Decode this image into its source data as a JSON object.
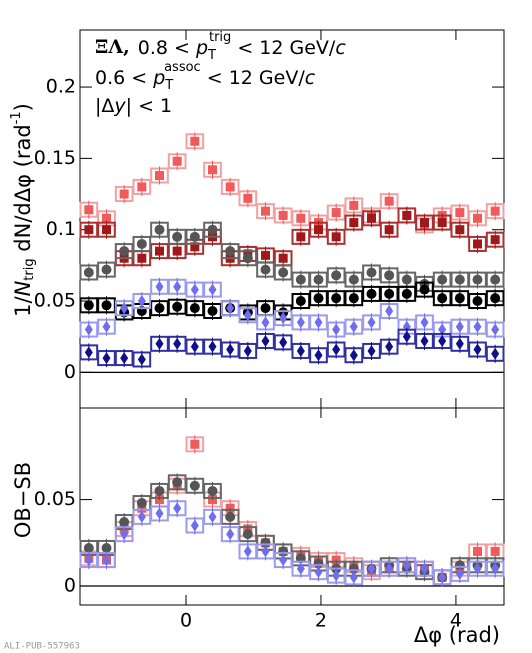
{
  "chart_data": [
    {
      "type": "scatter",
      "y_label_parts": [
        "1/",
        "N",
        "trig",
        " dN/dΔφ (rad",
        "-1",
        ")"
      ],
      "annotation_1": [
        "ΞΛ,",
        "0.8 < ",
        "p",
        "T",
        "trig",
        " < 12 GeV/",
        "c"
      ],
      "annotation_2": [
        "0.6 < ",
        "p",
        "T",
        "assoc",
        " < 12 GeV/",
        "c"
      ],
      "annotation_3": [
        "|Δ",
        "y",
        "| < 1"
      ],
      "xlim": [
        -1.5708,
        4.7124
      ],
      "xticks": [
        0,
        2,
        4
      ],
      "ylim": [
        -0.025,
        0.24
      ],
      "yticks": [
        0,
        0.05,
        0.1,
        0.15,
        0.2
      ],
      "x": [
        -1.4399,
        -1.1781,
        -0.9163,
        -0.6545,
        -0.3927,
        -0.1309,
        0.1309,
        0.3927,
        0.6545,
        0.9163,
        1.1781,
        1.4399,
        1.7017,
        1.9635,
        2.2253,
        2.4871,
        2.7489,
        3.0107,
        3.2725,
        3.5343,
        3.7961,
        4.0579,
        4.3197,
        4.5815
      ],
      "series": [
        {
          "marker": "square",
          "color": "#f05a5a",
          "box_color": "#f4a0a0",
          "values": [
            0.114,
            0.108,
            0.125,
            0.13,
            0.138,
            0.148,
            0.162,
            0.142,
            0.13,
            0.122,
            0.113,
            0.11,
            0.108,
            0.105,
            0.112,
            0.117,
            0.11,
            0.12,
            0.11,
            0.103,
            0.11,
            0.112,
            0.108,
            0.113
          ]
        },
        {
          "marker": "square",
          "color": "#a01818",
          "box_color": "#a83030",
          "values": [
            0.1,
            0.1,
            0.08,
            0.08,
            0.085,
            0.085,
            0.088,
            0.095,
            0.08,
            0.083,
            0.082,
            0.08,
            0.095,
            0.1,
            0.095,
            0.105,
            0.108,
            0.1,
            0.11,
            0.105,
            0.105,
            0.1,
            0.09,
            0.093
          ]
        },
        {
          "marker": "circle",
          "color": "#555555",
          "box_color": "#666666",
          "values": [
            0.07,
            0.072,
            0.085,
            0.09,
            0.1,
            0.095,
            0.095,
            0.1,
            0.085,
            0.08,
            0.072,
            0.07,
            0.065,
            0.065,
            0.068,
            0.065,
            0.07,
            0.068,
            0.065,
            0.062,
            0.065,
            0.065,
            0.065,
            0.065
          ]
        },
        {
          "marker": "circle",
          "color": "#000000",
          "box_color": "#000000",
          "values": [
            0.047,
            0.047,
            0.042,
            0.043,
            0.045,
            0.046,
            0.045,
            0.043,
            0.045,
            0.042,
            0.045,
            0.042,
            0.05,
            0.052,
            0.052,
            0.052,
            0.055,
            0.055,
            0.055,
            0.058,
            0.052,
            0.052,
            0.05,
            0.052
          ]
        },
        {
          "marker": "diamond",
          "color": "#6e6eee",
          "box_color": "#9a9af0",
          "values": [
            0.03,
            0.032,
            0.045,
            0.05,
            0.06,
            0.06,
            0.058,
            0.058,
            0.045,
            0.04,
            0.035,
            0.038,
            0.035,
            0.035,
            0.03,
            0.032,
            0.035,
            0.043,
            0.032,
            0.035,
            0.03,
            0.032,
            0.032,
            0.03
          ]
        },
        {
          "marker": "diamond",
          "color": "#10108a",
          "box_color": "#3030a0",
          "values": [
            0.014,
            0.01,
            0.01,
            0.009,
            0.02,
            0.02,
            0.018,
            0.018,
            0.016,
            0.015,
            0.022,
            0.021,
            0.015,
            0.012,
            0.016,
            0.012,
            0.015,
            0.018,
            0.025,
            0.022,
            0.022,
            0.02,
            0.016,
            0.013
          ]
        }
      ]
    },
    {
      "type": "scatter",
      "y_label": "OB−SB",
      "x_label": "Δφ (rad)",
      "watermark": "ALI-PUB-557963",
      "xlim": [
        -1.5708,
        4.7124
      ],
      "xticks": [
        0,
        2,
        4
      ],
      "ylim": [
        -0.011,
        0.103
      ],
      "yticks": [
        0,
        0.05
      ],
      "x": [
        -1.4399,
        -1.1781,
        -0.9163,
        -0.6545,
        -0.3927,
        -0.1309,
        0.1309,
        0.3927,
        0.6545,
        0.9163,
        1.1781,
        1.4399,
        1.7017,
        1.9635,
        2.2253,
        2.4871,
        2.7489,
        3.0107,
        3.2725,
        3.5343,
        3.7961,
        4.0579,
        4.3197,
        4.5815
      ],
      "series": [
        {
          "marker": "square",
          "color": "#f05a5a",
          "box_color": "#f4a0a0",
          "values": [
            0.016,
            0.015,
            0.033,
            0.045,
            0.05,
            0.058,
            0.082,
            0.05,
            0.045,
            0.033,
            0.025,
            0.02,
            0.018,
            0.015,
            0.015,
            0.012,
            0.008,
            0.01,
            0.012,
            0.01,
            0.005,
            0.01,
            0.02,
            0.02
          ]
        },
        {
          "marker": "circle",
          "color": "#555555",
          "box_color": "#666666",
          "values": [
            0.022,
            0.022,
            0.037,
            0.048,
            0.055,
            0.06,
            0.058,
            0.055,
            0.04,
            0.03,
            0.025,
            0.02,
            0.016,
            0.013,
            0.01,
            0.01,
            0.01,
            0.012,
            0.01,
            0.008,
            0.005,
            0.012,
            0.012,
            0.012
          ]
        },
        {
          "marker": "diamond",
          "color": "#6e6eee",
          "box_color": "#9a9af0",
          "values": [
            0.015,
            0.015,
            0.03,
            0.04,
            0.042,
            0.045,
            0.035,
            0.04,
            0.03,
            0.02,
            0.02,
            0.015,
            0.01,
            0.008,
            0.006,
            0.005,
            0.01,
            0.01,
            0.012,
            0.01,
            0.005,
            0.007,
            0.01,
            0.01
          ]
        }
      ]
    }
  ]
}
